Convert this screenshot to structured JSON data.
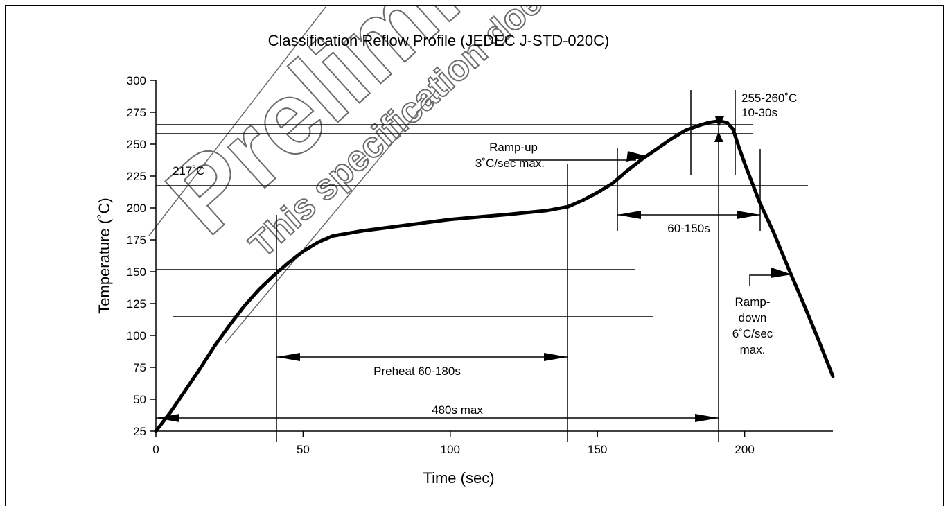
{
  "chart_data": {
    "type": "line",
    "title": "Classification Reflow Profile (JEDEC J-STD-020C)",
    "xlabel": "Time (sec)",
    "ylabel": "Temperature (˚C)",
    "xlim": [
      0,
      230
    ],
    "ylim": [
      25,
      300
    ],
    "x_ticks": [
      "0",
      "50",
      "100",
      "150",
      "200"
    ],
    "x_tick_values": [
      0,
      50,
      100,
      150,
      200
    ],
    "y_ticks": [
      "300",
      "275",
      "250",
      "225",
      "200",
      "175",
      "150",
      "125",
      "100",
      "75",
      "50",
      "25"
    ],
    "y_tick_values": [
      300,
      275,
      250,
      225,
      200,
      175,
      150,
      125,
      100,
      75,
      50,
      25
    ],
    "grid": false,
    "legend": "none",
    "series": [
      {
        "x": [
          0,
          5,
          10,
          15,
          20,
          25,
          30,
          35,
          40,
          45,
          50,
          55,
          60,
          70,
          80,
          90,
          100,
          110,
          120,
          133,
          140,
          145,
          150,
          155,
          160,
          165,
          170,
          175,
          180,
          185,
          188,
          191,
          194,
          196,
          198,
          200,
          205,
          210,
          215,
          220,
          225,
          230
        ],
        "y": [
          25,
          40,
          57,
          74,
          92,
          108,
          123,
          136,
          147,
          157,
          166,
          173,
          178,
          182,
          185,
          188,
          191,
          193,
          195,
          198,
          201,
          206,
          212,
          219,
          229,
          238,
          246,
          254,
          261,
          265,
          267,
          268,
          267,
          262,
          248,
          235,
          205,
          180,
          152,
          125,
          97,
          68
        ]
      }
    ],
    "annotations": {
      "temp_217": "217˚C",
      "ramp_up": [
        "Ramp-up",
        "3˚C/sec max."
      ],
      "peak": [
        "255-260˚C",
        "10-30s"
      ],
      "above_217": "60-150s",
      "ramp_down": [
        "Ramp-",
        "down",
        "6˚C/sec",
        "max."
      ],
      "preheat": "Preheat 60-180s",
      "total": "480s max"
    },
    "watermark": {
      "main": "Preliminary",
      "sub": "This specification does not conform"
    }
  },
  "colors": {
    "line": "#000000",
    "frame": "#000000",
    "watermark_stroke": "#6b6b6b",
    "background": "#ffffff"
  }
}
